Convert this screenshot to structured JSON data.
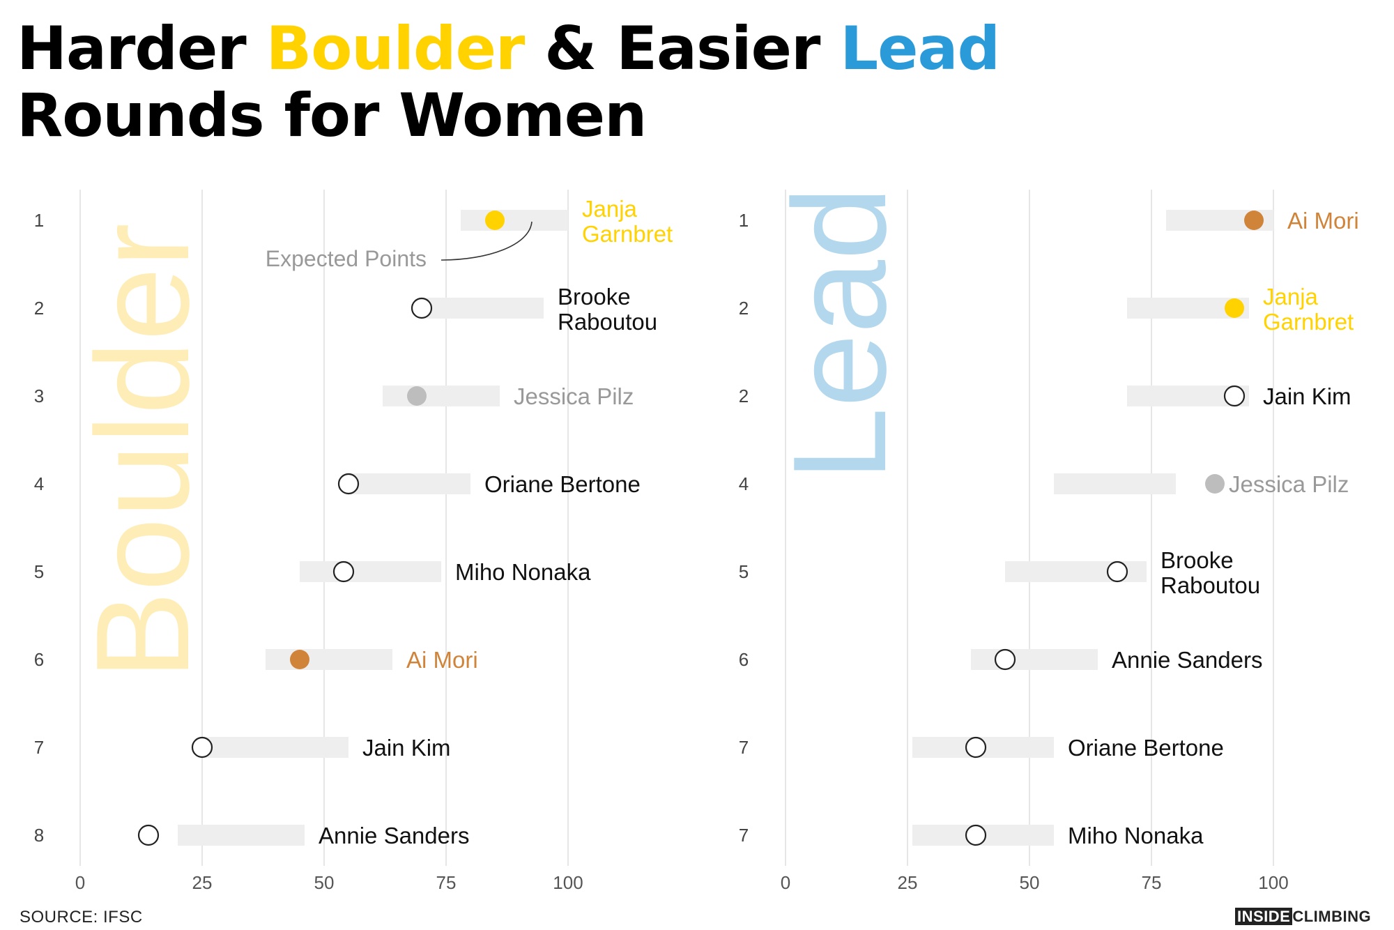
{
  "title": {
    "part1": "Harder ",
    "boulder": "Boulder",
    "part2": " & Easier ",
    "lead": "Lead",
    "line2": "Rounds for Women"
  },
  "source": "SOURCE: IFSC",
  "logo": {
    "inverted": "INSIDE",
    "plain": "CLIMBING"
  },
  "colors": {
    "boulder_accent": "#FFD200",
    "lead_accent": "#2A9AD8",
    "boulder_bg_text": "#FFEDB8",
    "lead_bg_text": "#B3D8EE",
    "garnbret": "#FFD200",
    "mori": "#D0843A",
    "pilz": "#BDBDBD",
    "neutral_text": "#111111",
    "pilz_text": "#999999",
    "range_bar": "#EEEEEE",
    "grid": "#E6E6E6"
  },
  "chart_data": [
    {
      "type": "dot-range",
      "panel_label": "Boulder",
      "xlim": [
        0,
        100
      ],
      "xticks": [
        0,
        25,
        50,
        75,
        100
      ],
      "annotation": "Expected Points",
      "rows": [
        {
          "rank": "1",
          "athlete": "Janja Garnbret",
          "label_lines": [
            "Janja",
            "Garnbret"
          ],
          "points": 85,
          "expected": [
            78,
            100
          ],
          "highlight": "garnbret"
        },
        {
          "rank": "2",
          "athlete": "Brooke Raboutou",
          "label_lines": [
            "Brooke",
            "Raboutou"
          ],
          "points": 70,
          "expected": [
            70,
            95
          ],
          "highlight": "none"
        },
        {
          "rank": "3",
          "athlete": "Jessica Pilz",
          "label_lines": [
            "Jessica Pilz"
          ],
          "points": 69,
          "expected": [
            62,
            86
          ],
          "highlight": "pilz"
        },
        {
          "rank": "4",
          "athlete": "Oriane Bertone",
          "label_lines": [
            "Oriane Bertone"
          ],
          "points": 55,
          "expected": [
            55,
            80
          ],
          "highlight": "none"
        },
        {
          "rank": "5",
          "athlete": "Miho Nonaka",
          "label_lines": [
            "Miho Nonaka"
          ],
          "points": 54,
          "expected": [
            45,
            74
          ],
          "highlight": "none"
        },
        {
          "rank": "6",
          "athlete": "Ai Mori",
          "label_lines": [
            "Ai Mori"
          ],
          "points": 45,
          "expected": [
            38,
            64
          ],
          "highlight": "mori"
        },
        {
          "rank": "7",
          "athlete": "Jain Kim",
          "label_lines": [
            "Jain Kim"
          ],
          "points": 25,
          "expected": [
            25,
            55
          ],
          "highlight": "none"
        },
        {
          "rank": "8",
          "athlete": "Annie Sanders",
          "label_lines": [
            "Annie Sanders"
          ],
          "points": 14,
          "expected": [
            20,
            46
          ],
          "highlight": "none"
        }
      ]
    },
    {
      "type": "dot-range",
      "panel_label": "Lead",
      "xlim": [
        0,
        100
      ],
      "xticks": [
        0,
        25,
        50,
        75,
        100
      ],
      "rows": [
        {
          "rank": "1",
          "athlete": "Ai Mori",
          "label_lines": [
            "Ai Mori"
          ],
          "points": 96,
          "expected": [
            78,
            100
          ],
          "highlight": "mori"
        },
        {
          "rank": "2",
          "athlete": "Janja Garnbret",
          "label_lines": [
            "Janja",
            "Garnbret"
          ],
          "points": 92,
          "expected": [
            70,
            95
          ],
          "highlight": "garnbret"
        },
        {
          "rank": "2",
          "athlete": "Jain Kim",
          "label_lines": [
            "Jain Kim"
          ],
          "points": 92,
          "expected": [
            70,
            95
          ],
          "highlight": "none"
        },
        {
          "rank": "4",
          "athlete": "Jessica Pilz",
          "label_lines": [
            "Jessica Pilz"
          ],
          "points": 88,
          "expected": [
            55,
            80
          ],
          "highlight": "pilz"
        },
        {
          "rank": "5",
          "athlete": "Brooke Raboutou",
          "label_lines": [
            "Brooke",
            "Raboutou"
          ],
          "points": 68,
          "expected": [
            45,
            74
          ],
          "highlight": "none"
        },
        {
          "rank": "6",
          "athlete": "Annie Sanders",
          "label_lines": [
            "Annie Sanders"
          ],
          "points": 45,
          "expected": [
            38,
            64
          ],
          "highlight": "none"
        },
        {
          "rank": "7",
          "athlete": "Oriane Bertone",
          "label_lines": [
            "Oriane Bertone"
          ],
          "points": 39,
          "expected": [
            26,
            55
          ],
          "highlight": "none"
        },
        {
          "rank": "7",
          "athlete": "Miho Nonaka",
          "label_lines": [
            "Miho Nonaka"
          ],
          "points": 39,
          "expected": [
            26,
            55
          ],
          "highlight": "none"
        }
      ]
    }
  ]
}
